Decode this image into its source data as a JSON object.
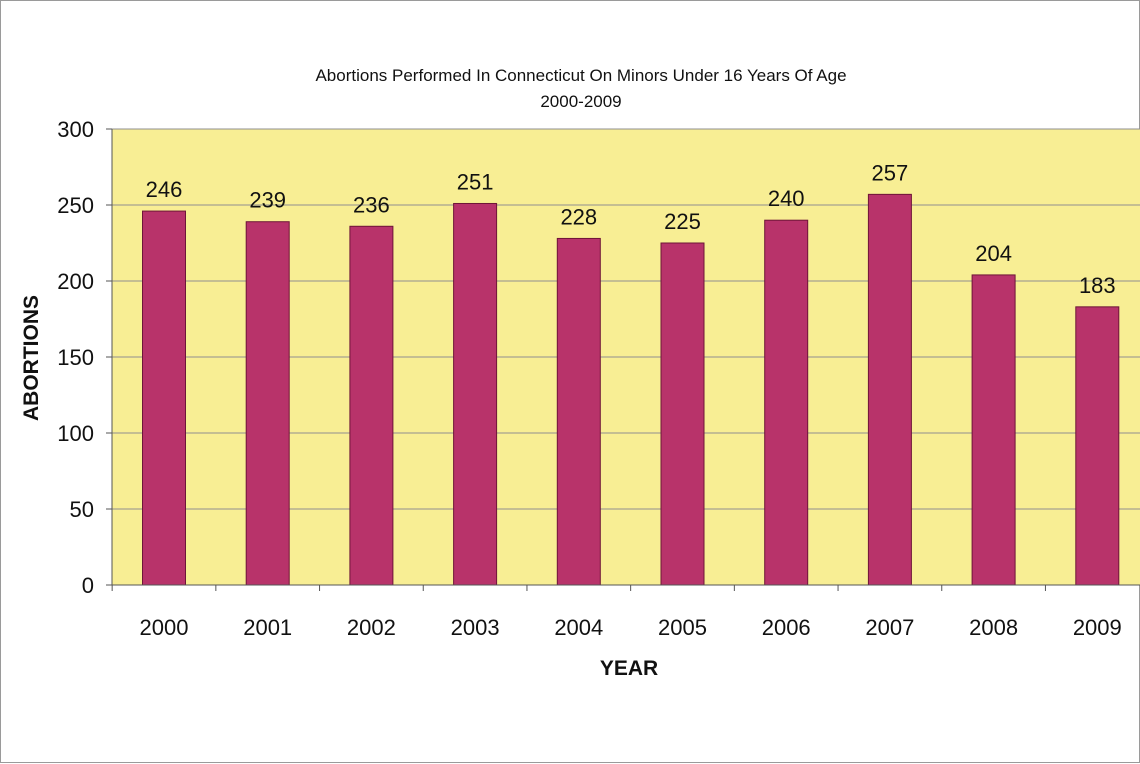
{
  "chart_data": {
    "type": "bar",
    "title": "Abortions Performed In Connecticut On Minors Under 16 Years Of Age",
    "subtitle": "2000-2009",
    "xlabel": "YEAR",
    "ylabel": "ABORTIONS",
    "categories": [
      "2000",
      "2001",
      "2002",
      "2003",
      "2004",
      "2005",
      "2006",
      "2007",
      "2008",
      "2009"
    ],
    "values": [
      246,
      239,
      236,
      251,
      228,
      225,
      240,
      257,
      204,
      183
    ],
    "value_labels": [
      "246",
      "239",
      "236",
      "251",
      "228",
      "225",
      "240",
      "257",
      "204",
      "183"
    ],
    "ylim": [
      0,
      300
    ],
    "yticks": [
      0,
      50,
      100,
      150,
      200,
      250,
      300
    ],
    "ytick_labels": [
      "0",
      "50",
      "100",
      "150",
      "200",
      "250",
      "300"
    ],
    "grid": true,
    "legend": "none",
    "colors": {
      "bar": "#b8336a",
      "bar_outline": "#6e1538",
      "plot_background": "#f8ee94",
      "gridline": "#8f8f8f",
      "axis": "#555555"
    }
  }
}
